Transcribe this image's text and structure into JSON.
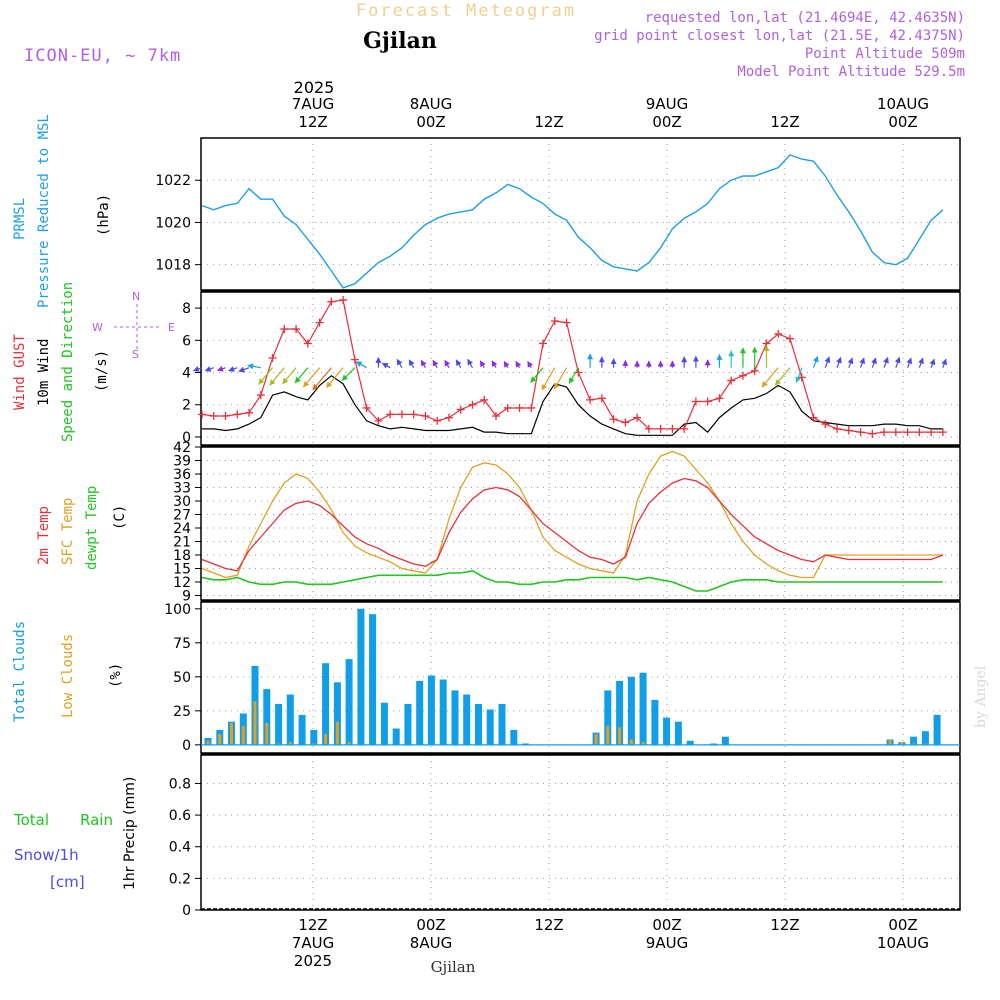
{
  "header": {
    "super_title": "Forecast Meteogram",
    "location": "Gjilan",
    "model": "ICON-EU, ~ 7km",
    "requested": "requested lon,lat (21.4694E, 42.4635N)",
    "grid": "grid point closest lon,lat (21.5E, 42.4375N)",
    "point_alt": "Point Altitude 509m",
    "model_alt": "Model Point Altitude 529.5m"
  },
  "footer": {
    "location": "Gjilan",
    "credit": "by Angel"
  },
  "colors": {
    "pressure": "#1e9ee8",
    "gust": "#e8303a",
    "wind": "#000000",
    "wind_label": "#22c422",
    "t2m": "#e8303a",
    "sfc": "#e0a020",
    "dewpt": "#22c422",
    "total_clouds": "#109ee8",
    "low_clouds": "#e0a020",
    "rain": "#22c422",
    "snow": "#4a4ae8",
    "compass": "#b060e0"
  },
  "time_axis": {
    "top_year": "2025",
    "ticks_top": [
      {
        "line1": "7AUG",
        "line2": "12Z"
      },
      {
        "line1": "8AUG",
        "line2": "00Z"
      },
      {
        "line1": "",
        "line2": "12Z"
      },
      {
        "line1": "9AUG",
        "line2": "00Z"
      },
      {
        "line1": "",
        "line2": "12Z"
      },
      {
        "line1": "10AUG",
        "line2": "00Z"
      }
    ],
    "ticks_bottom": [
      {
        "line1": "12Z",
        "line2": "7AUG",
        "line3": "2025"
      },
      {
        "line1": "00Z",
        "line2": "8AUG",
        "line3": ""
      },
      {
        "line1": "12Z",
        "line2": "",
        "line3": ""
      },
      {
        "line1": "00Z",
        "line2": "9AUG",
        "line3": ""
      },
      {
        "line1": "12Z",
        "line2": "",
        "line3": ""
      },
      {
        "line1": "00Z",
        "line2": "10AUG",
        "line3": ""
      }
    ]
  },
  "labels": {
    "pressure": [
      "PRMSL",
      "Pressure Reduced to MSL"
    ],
    "pressure_unit": "(hPa)",
    "wind": [
      "Wind GUST",
      "10m Wind",
      "Speed and Direction"
    ],
    "wind_unit": "(m/s)",
    "compass": {
      "n": "N",
      "s": "S",
      "w": "W",
      "e": "E"
    },
    "temp": [
      "2m Temp",
      "SFC Temp",
      "dewpt Temp"
    ],
    "temp_unit": "(C)",
    "clouds": [
      "Total Clouds",
      "Low Clouds"
    ],
    "clouds_unit": "(%)",
    "precip_left": [
      "Total",
      "Rain",
      "Snow/1h",
      "[cm]"
    ],
    "precip_unit": "1hr Precip (mm)"
  },
  "chart_data": [
    {
      "type": "line",
      "name": "pressure",
      "ylabel": "Pressure Reduced to MSL (hPa)",
      "yticks": [
        "1018",
        "1020",
        "1022"
      ],
      "ylim": [
        1016.8,
        1024.0
      ],
      "x_hours": [
        0,
        1,
        2,
        3,
        4,
        5,
        6,
        7,
        8,
        9,
        10,
        11,
        12,
        13,
        14,
        15,
        16,
        17,
        18,
        19,
        20,
        21,
        22,
        23,
        24,
        25,
        26,
        27,
        28,
        29,
        30,
        31,
        32,
        33,
        34,
        35,
        36,
        37,
        38,
        39,
        40,
        41,
        42,
        43,
        44,
        45,
        46,
        47,
        48,
        49,
        50,
        51,
        52,
        53,
        54,
        55,
        56,
        57,
        58,
        59,
        60,
        61,
        62,
        63
      ],
      "values": [
        1020.8,
        1020.6,
        1020.8,
        1020.9,
        1021.6,
        1021.1,
        1021.1,
        1020.3,
        1019.9,
        1019.2,
        1018.5,
        1017.7,
        1016.9,
        1017.1,
        1017.6,
        1018.1,
        1018.4,
        1018.8,
        1019.4,
        1019.9,
        1020.2,
        1020.4,
        1020.5,
        1020.6,
        1021.1,
        1021.4,
        1021.8,
        1021.6,
        1021.2,
        1020.9,
        1020.4,
        1020.1,
        1019.3,
        1018.8,
        1018.2,
        1017.9,
        1017.8,
        1017.7,
        1018.1,
        1018.8,
        1019.7,
        1020.2,
        1020.5,
        1020.9,
        1021.6,
        1022.0,
        1022.2,
        1022.2,
        1022.4,
        1022.6,
        1023.2,
        1023.0,
        1022.9,
        1022.2,
        1021.3,
        1020.5,
        1019.6,
        1018.6,
        1018.1,
        1018.0,
        1018.3,
        1019.2,
        1020.1,
        1020.6
      ]
    },
    {
      "type": "line",
      "name": "wind",
      "ylabel": "(m/s)",
      "yticks": [
        "0",
        "2",
        "4",
        "6",
        "8"
      ],
      "ylim": [
        -0.5,
        9.0
      ],
      "x_hours": [
        0,
        1,
        2,
        3,
        4,
        5,
        6,
        7,
        8,
        9,
        10,
        11,
        12,
        13,
        14,
        15,
        16,
        17,
        18,
        19,
        20,
        21,
        22,
        23,
        24,
        25,
        26,
        27,
        28,
        29,
        30,
        31,
        32,
        33,
        34,
        35,
        36,
        37,
        38,
        39,
        40,
        41,
        42,
        43,
        44,
        45,
        46,
        47,
        48,
        49,
        50,
        51,
        52,
        53,
        54,
        55,
        56,
        57,
        58,
        59,
        60,
        61,
        62,
        63
      ],
      "series": [
        {
          "name": "Wind GUST",
          "values": [
            1.4,
            1.3,
            1.3,
            1.4,
            1.5,
            2.6,
            4.9,
            6.7,
            6.7,
            5.8,
            7.1,
            8.4,
            8.5,
            4.8,
            1.8,
            1.0,
            1.4,
            1.4,
            1.4,
            1.3,
            1.0,
            1.2,
            1.7,
            2.0,
            2.3,
            1.3,
            1.8,
            1.8,
            1.8,
            5.8,
            7.2,
            7.1,
            4.0,
            2.3,
            2.4,
            1.1,
            0.9,
            1.2,
            0.5,
            0.5,
            0.5,
            0.5,
            2.2,
            2.2,
            2.4,
            3.5,
            3.8,
            4.1,
            5.8,
            6.4,
            6.1,
            3.7,
            1.2,
            0.8,
            0.5,
            0.4,
            0.3,
            0.2,
            0.3,
            0.3,
            0.3,
            0.3,
            0.3,
            0.3
          ]
        },
        {
          "name": "10m Wind",
          "values": [
            0.5,
            0.5,
            0.4,
            0.5,
            0.8,
            1.2,
            2.6,
            2.8,
            2.5,
            2.3,
            3.2,
            3.8,
            3.3,
            2.0,
            1.0,
            0.7,
            0.5,
            0.6,
            0.5,
            0.4,
            0.4,
            0.4,
            0.5,
            0.6,
            0.3,
            0.3,
            0.2,
            0.2,
            0.2,
            2.2,
            3.3,
            3.1,
            2.0,
            1.3,
            0.8,
            0.5,
            0.2,
            0.1,
            0.1,
            0.1,
            0.1,
            0.8,
            0.9,
            0.3,
            1.2,
            1.8,
            2.3,
            2.4,
            2.7,
            3.2,
            2.8,
            1.6,
            1.0,
            0.9,
            0.8,
            0.7,
            0.7,
            0.7,
            0.8,
            0.8,
            0.7,
            0.7,
            0.5,
            0.5
          ]
        }
      ],
      "wind_dir_deg": [
        250,
        250,
        250,
        250,
        250,
        280,
        220,
        220,
        220,
        220,
        220,
        220,
        220,
        225,
        300,
        0,
        300,
        330,
        330,
        330,
        330,
        330,
        330,
        330,
        330,
        330,
        330,
        330,
        330,
        220,
        210,
        210,
        210,
        0,
        0,
        0,
        0,
        0,
        0,
        0,
        0,
        0,
        0,
        0,
        0,
        0,
        0,
        0,
        0,
        220,
        220,
        200,
        20,
        20,
        20,
        20,
        20,
        20,
        20,
        20,
        20,
        20,
        20,
        20
      ]
    },
    {
      "type": "line",
      "name": "temperature",
      "ylabel": "(C)",
      "yticks": [
        "9",
        "12",
        "15",
        "18",
        "21",
        "24",
        "27",
        "30",
        "33",
        "36",
        "39",
        "42"
      ],
      "ylim": [
        8.0,
        42.0
      ],
      "x_hours": [
        0,
        1,
        2,
        3,
        4,
        5,
        6,
        7,
        8,
        9,
        10,
        11,
        12,
        13,
        14,
        15,
        16,
        17,
        18,
        19,
        20,
        21,
        22,
        23,
        24,
        25,
        26,
        27,
        28,
        29,
        30,
        31,
        32,
        33,
        34,
        35,
        36,
        37,
        38,
        39,
        40,
        41,
        42,
        43,
        44,
        45,
        46,
        47,
        48,
        49,
        50,
        51,
        52,
        53,
        54,
        55,
        56,
        57,
        58,
        59,
        60,
        61,
        62,
        63
      ],
      "series": [
        {
          "name": "2m Temp",
          "values": [
            17,
            16,
            15,
            14.5,
            19,
            22,
            25,
            28,
            29.5,
            30,
            29,
            27,
            24.5,
            22,
            20.5,
            19.5,
            18,
            17,
            16,
            15.5,
            17,
            23,
            27.5,
            30.5,
            32.5,
            33,
            32.5,
            31,
            28,
            25,
            23,
            21,
            19,
            17.5,
            17,
            16,
            17.5,
            25,
            29.5,
            32,
            34,
            35,
            34.5,
            33,
            30,
            27,
            24.5,
            22,
            20.5,
            19,
            18,
            17,
            16.5,
            18,
            17.5,
            17,
            17,
            17,
            17,
            17,
            17,
            17,
            17,
            18
          ]
        },
        {
          "name": "SFC Temp",
          "values": [
            15,
            14,
            13,
            13.5,
            20,
            25,
            30,
            34,
            36,
            35,
            32,
            28,
            23,
            20,
            18.5,
            17.5,
            16.5,
            15,
            14.5,
            14,
            17,
            26,
            33,
            37.5,
            38.5,
            38,
            36,
            33,
            28,
            22,
            19,
            17.5,
            16,
            15,
            14.5,
            14,
            18,
            30,
            36,
            40,
            41,
            40,
            37,
            34,
            30,
            25,
            21,
            18,
            16,
            14.5,
            13.5,
            13,
            13,
            18,
            18,
            18,
            18,
            18,
            18,
            18,
            18,
            18,
            18,
            18
          ]
        },
        {
          "name": "dewpt Temp",
          "values": [
            13,
            12.5,
            12.5,
            13,
            12,
            11.5,
            11.5,
            12,
            12,
            11.5,
            11.5,
            11.5,
            12,
            12.5,
            13,
            13.5,
            13.5,
            13.5,
            13.5,
            13.5,
            13.5,
            14,
            14,
            14.5,
            13,
            12,
            12,
            11.5,
            11.5,
            12,
            12,
            12.5,
            12.5,
            13,
            13,
            13,
            13,
            12.5,
            13,
            12.5,
            12,
            11,
            10,
            10,
            11,
            12,
            12.5,
            12.5,
            12.5,
            12,
            12,
            12,
            12,
            12,
            12,
            12,
            12,
            12,
            12,
            12,
            12,
            12,
            12,
            12
          ]
        }
      ]
    },
    {
      "type": "bar",
      "name": "clouds",
      "ylabel": "(%)",
      "yticks": [
        "0",
        "25",
        "50",
        "75",
        "100"
      ],
      "ylim": [
        -6,
        105
      ],
      "x_hours": [
        0,
        1,
        2,
        3,
        4,
        5,
        6,
        7,
        8,
        9,
        10,
        11,
        12,
        13,
        14,
        15,
        16,
        17,
        18,
        19,
        20,
        21,
        22,
        23,
        24,
        25,
        26,
        27,
        28,
        29,
        30,
        31,
        32,
        33,
        34,
        35,
        36,
        37,
        38,
        39,
        40,
        41,
        42,
        43,
        44,
        45,
        46,
        47,
        48,
        49,
        50,
        51,
        52,
        53,
        54,
        55,
        56,
        57,
        58,
        59,
        60,
        61,
        62,
        63
      ],
      "series": [
        {
          "name": "Total Clouds",
          "values": [
            5,
            11,
            17,
            23,
            58,
            41,
            30,
            37,
            22,
            11,
            60,
            46,
            63,
            100,
            96,
            31,
            12,
            30,
            47,
            51,
            48,
            40,
            37,
            30,
            26,
            30,
            11,
            1,
            0,
            0,
            0,
            0,
            0,
            9,
            40,
            47,
            50,
            53,
            33,
            20,
            17,
            3,
            0,
            1,
            6,
            0,
            0,
            0,
            0,
            0,
            0,
            0,
            0,
            0,
            0,
            0,
            0,
            0,
            4,
            2,
            6,
            10,
            22,
            0
          ]
        },
        {
          "name": "Low Clouds",
          "values": [
            3,
            8,
            16,
            14,
            32,
            16,
            1,
            2,
            0,
            1,
            8,
            17,
            2,
            0,
            0,
            0,
            0,
            0,
            0,
            0,
            0,
            0,
            0,
            0,
            0,
            0,
            0,
            0,
            0,
            0,
            0,
            0,
            0,
            8,
            14,
            13,
            4,
            2,
            0,
            0,
            0,
            0,
            0,
            0,
            0,
            0,
            0,
            0,
            0,
            0,
            0,
            0,
            0,
            0,
            0,
            0,
            0,
            0,
            4,
            2,
            1,
            1,
            0,
            0
          ]
        }
      ]
    },
    {
      "type": "bar",
      "name": "precipitation",
      "ylabel": "1hr Precip (mm)",
      "yticks": [
        "0",
        "0.2",
        "0.4",
        "0.6",
        "0.8"
      ],
      "ylim": [
        0,
        0.98
      ],
      "values": []
    }
  ]
}
